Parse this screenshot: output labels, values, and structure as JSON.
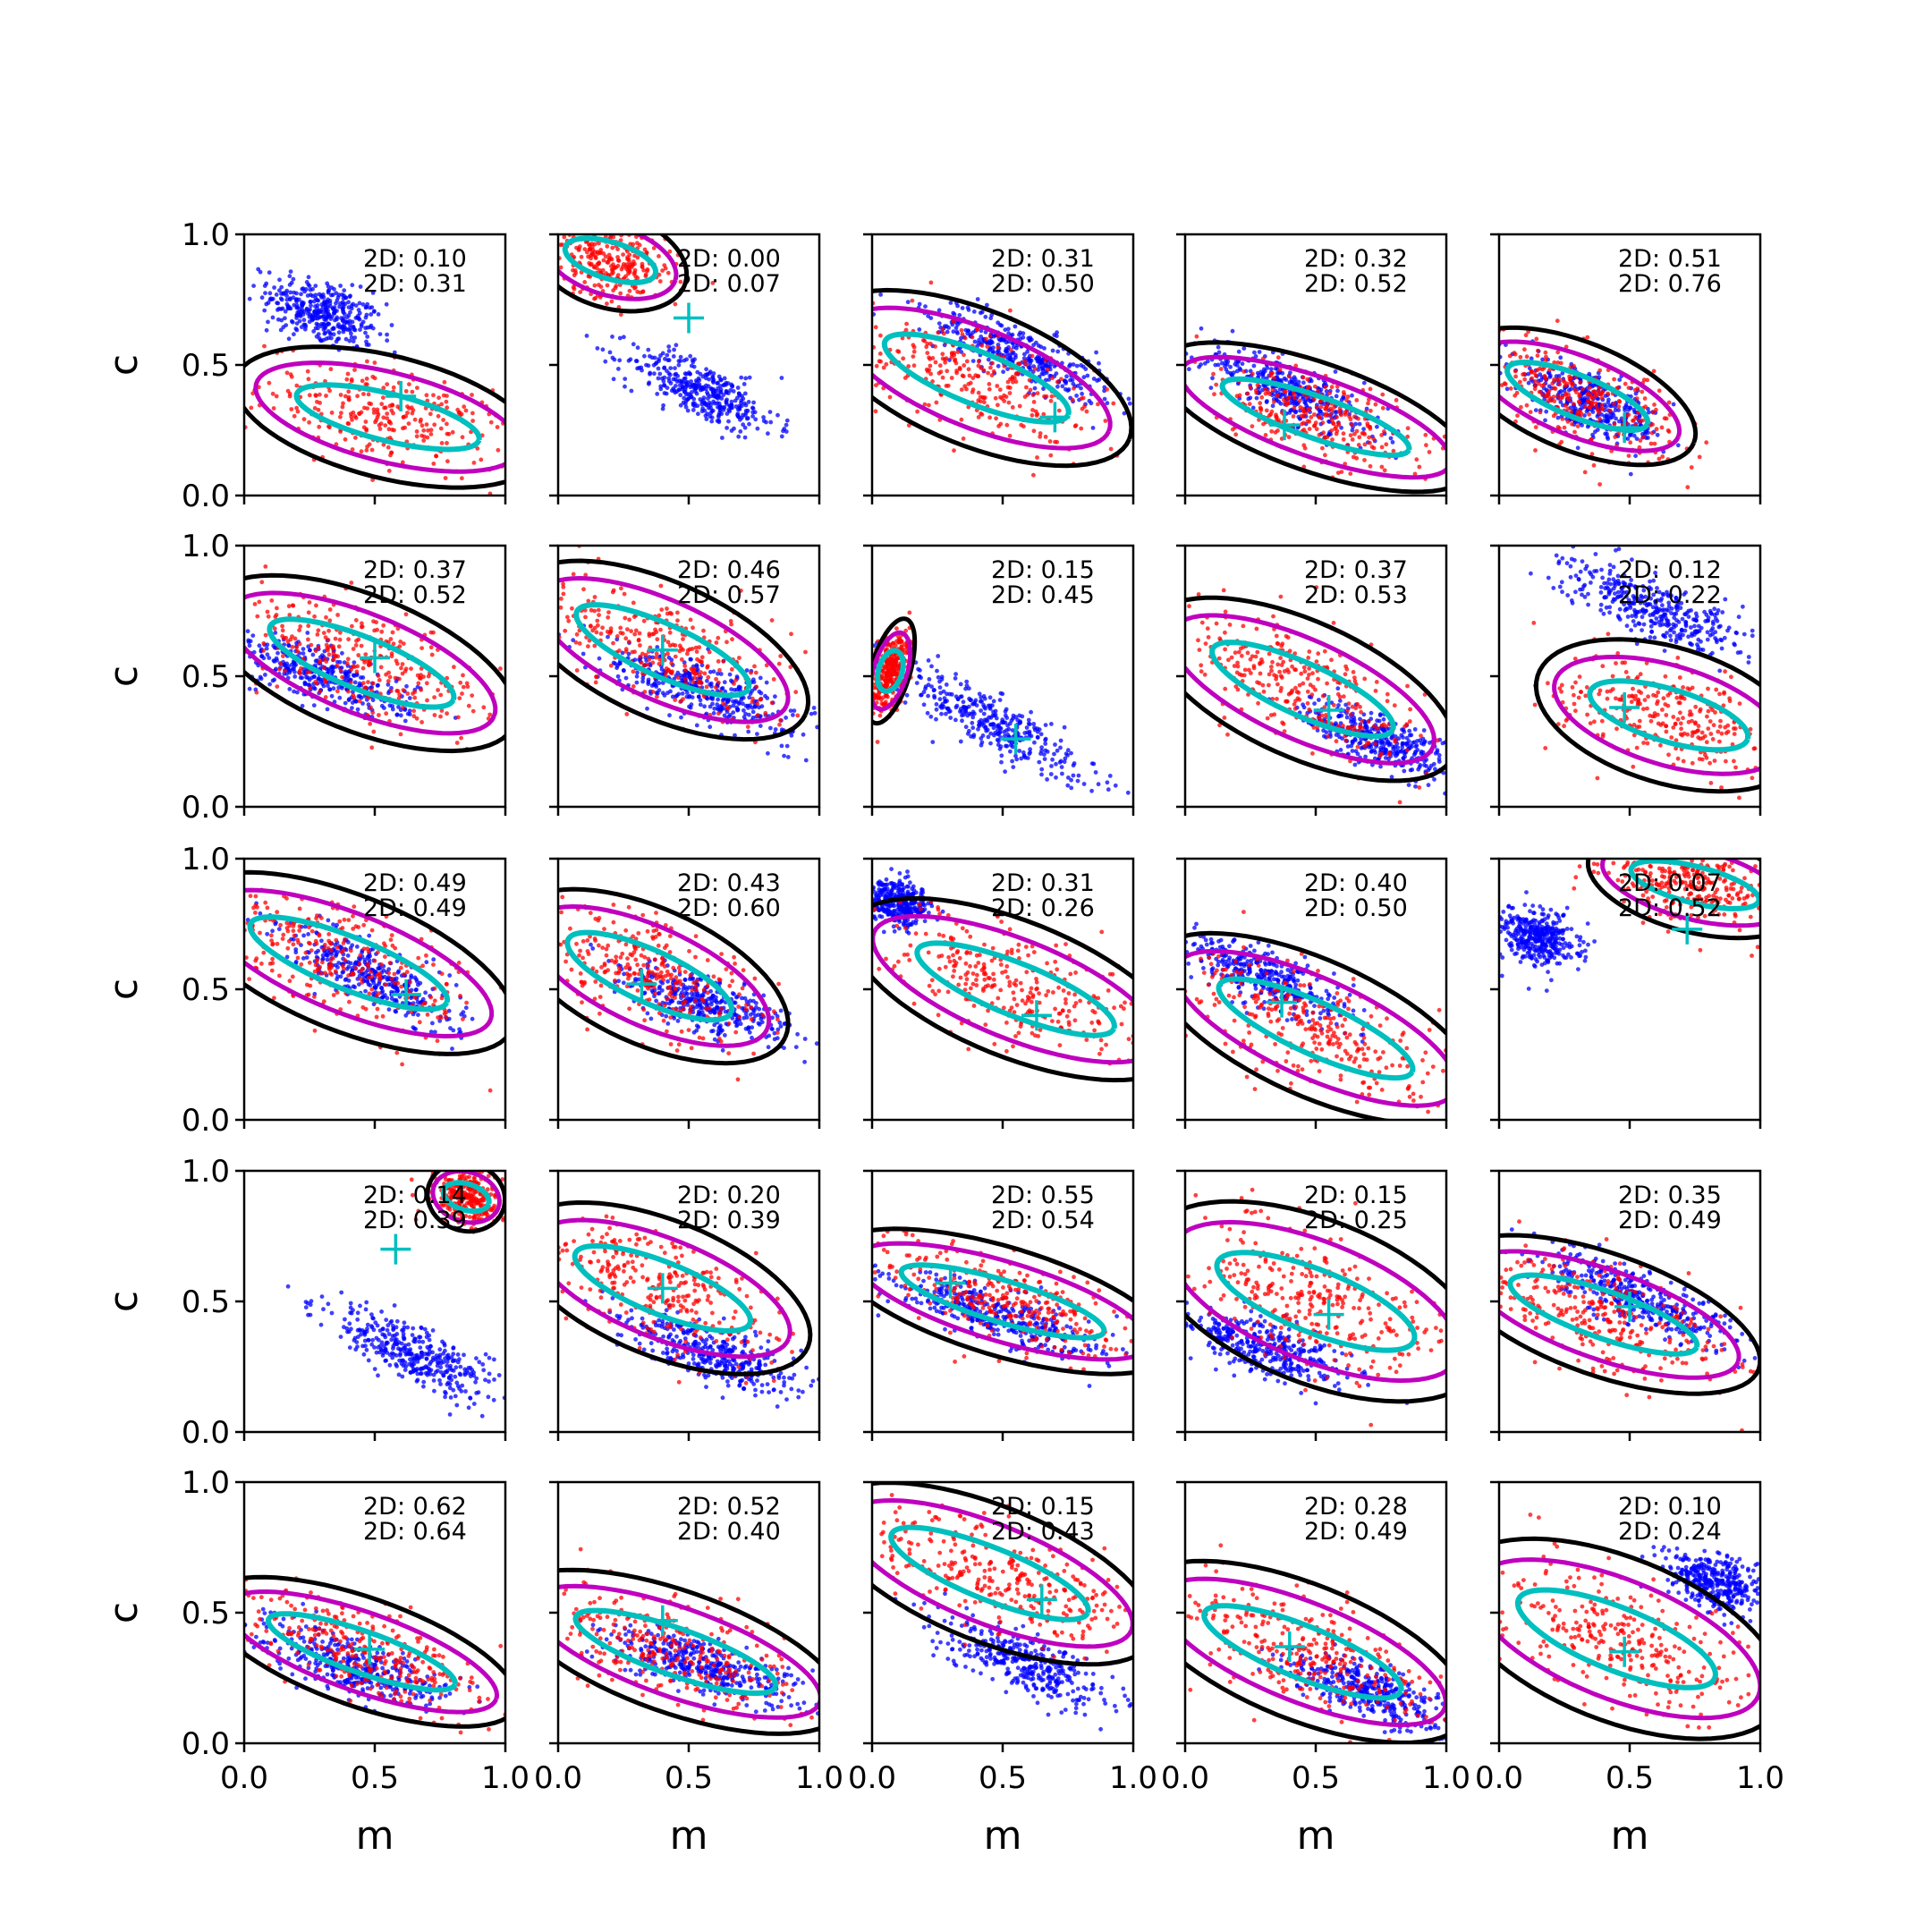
{
  "chart_data": {
    "type": "scatter",
    "grid": false,
    "rows": 5,
    "cols": 5,
    "xlabel": "m",
    "ylabel": "c",
    "xlim": [
      0,
      1
    ],
    "ylim": [
      0,
      1
    ],
    "xticks": [
      "0.0",
      "0.5",
      "1.0"
    ],
    "yticks": [
      "0.0",
      "0.5",
      "1.0"
    ],
    "series": [
      {
        "color": "#0000ff",
        "style": "points"
      },
      {
        "color": "#ff0000",
        "style": "points"
      },
      {
        "color": "#000000",
        "style": "contour"
      },
      {
        "color": "#bf00bf",
        "style": "contour"
      },
      {
        "color": "#00bfbf",
        "style": "contour"
      },
      {
        "color": "#00bfbf",
        "style": "cross marker"
      }
    ],
    "panels": [
      {
        "a1": "2D: 0.10",
        "a2": "2D: 0.31",
        "blue": {
          "m": 0.3,
          "c": 0.7,
          "s": -0.38,
          "w": 0.18,
          "t": 0.06
        },
        "red": {
          "m": 0.55,
          "c": 0.3,
          "s": -0.25,
          "w": 0.4,
          "t": 0.09
        },
        "mark": {
          "m": 0.6,
          "c": 0.38
        }
      },
      {
        "a1": "2D: 0.00",
        "a2": "2D: 0.07",
        "blue": {
          "m": 0.55,
          "c": 0.4,
          "s": -0.45,
          "w": 0.25,
          "t": 0.05
        },
        "red": {
          "m": 0.2,
          "c": 0.9,
          "s": -0.3,
          "w": 0.2,
          "t": 0.07
        },
        "mark": {
          "m": 0.5,
          "c": 0.68
        }
      },
      {
        "a1": "2D: 0.31",
        "a2": "2D: 0.50",
        "blue": {
          "m": 0.55,
          "c": 0.55,
          "s": -0.45,
          "w": 0.3,
          "t": 0.05
        },
        "red": {
          "m": 0.4,
          "c": 0.45,
          "s": -0.4,
          "w": 0.42,
          "t": 0.1
        },
        "mark": {
          "m": 0.7,
          "c": 0.3
        }
      },
      {
        "a1": "2D: 0.32",
        "a2": "2D: 0.52",
        "blue": {
          "m": 0.4,
          "c": 0.4,
          "s": -0.45,
          "w": 0.3,
          "t": 0.05
        },
        "red": {
          "m": 0.5,
          "c": 0.3,
          "s": -0.35,
          "w": 0.42,
          "t": 0.08
        },
        "mark": {
          "m": 0.38,
          "c": 0.27
        }
      },
      {
        "a1": "2D: 0.51",
        "a2": "2D: 0.76",
        "blue": {
          "m": 0.35,
          "c": 0.35,
          "s": -0.5,
          "w": 0.25,
          "t": 0.05
        },
        "red": {
          "m": 0.3,
          "c": 0.38,
          "s": -0.4,
          "w": 0.32,
          "t": 0.08
        },
        "mark": {
          "m": 0.48,
          "c": 0.26
        }
      },
      {
        "a1": "2D: 0.37",
        "a2": "2D: 0.52",
        "blue": {
          "m": 0.3,
          "c": 0.5,
          "s": -0.35,
          "w": 0.28,
          "t": 0.05
        },
        "red": {
          "m": 0.45,
          "c": 0.55,
          "s": -0.4,
          "w": 0.42,
          "t": 0.1
        },
        "mark": {
          "m": 0.5,
          "c": 0.57
        }
      },
      {
        "a1": "2D: 0.46",
        "a2": "2D: 0.57",
        "blue": {
          "m": 0.55,
          "c": 0.45,
          "s": -0.35,
          "w": 0.32,
          "t": 0.05
        },
        "red": {
          "m": 0.4,
          "c": 0.6,
          "s": -0.45,
          "w": 0.4,
          "t": 0.1
        },
        "mark": {
          "m": 0.4,
          "c": 0.6
        }
      },
      {
        "a1": "2D: 0.15",
        "a2": "2D: 0.45",
        "blue": {
          "m": 0.45,
          "c": 0.33,
          "s": -0.55,
          "w": 0.35,
          "t": 0.05
        },
        "red": {
          "m": 0.07,
          "c": 0.52,
          "s": -0.3,
          "w": 0.05,
          "t": 0.08
        },
        "mark": {
          "m": 0.55,
          "c": 0.26
        }
      },
      {
        "a1": "2D: 0.37",
        "a2": "2D: 0.53",
        "blue": {
          "m": 0.75,
          "c": 0.25,
          "s": -0.4,
          "w": 0.25,
          "t": 0.05
        },
        "red": {
          "m": 0.45,
          "c": 0.45,
          "s": -0.45,
          "w": 0.42,
          "t": 0.1
        },
        "mark": {
          "m": 0.55,
          "c": 0.37
        }
      },
      {
        "a1": "2D: 0.12",
        "a2": "2D: 0.22",
        "blue": {
          "m": 0.6,
          "c": 0.75,
          "s": -0.4,
          "w": 0.3,
          "t": 0.05
        },
        "red": {
          "m": 0.65,
          "c": 0.35,
          "s": -0.3,
          "w": 0.35,
          "t": 0.1
        },
        "mark": {
          "m": 0.48,
          "c": 0.38
        }
      },
      {
        "a1": "2D: 0.49",
        "a2": "2D: 0.49",
        "blue": {
          "m": 0.5,
          "c": 0.55,
          "s": -0.5,
          "w": 0.3,
          "t": 0.05
        },
        "red": {
          "m": 0.4,
          "c": 0.6,
          "s": -0.4,
          "w": 0.45,
          "t": 0.1
        },
        "mark": {
          "m": 0.62,
          "c": 0.48
        }
      },
      {
        "a1": "2D: 0.43",
        "a2": "2D: 0.60",
        "blue": {
          "m": 0.55,
          "c": 0.45,
          "s": -0.35,
          "w": 0.28,
          "t": 0.05
        },
        "red": {
          "m": 0.35,
          "c": 0.55,
          "s": -0.45,
          "w": 0.38,
          "t": 0.1
        },
        "mark": {
          "m": 0.32,
          "c": 0.52
        }
      },
      {
        "a1": "2D: 0.31",
        "a2": "2D: 0.26",
        "blue": {
          "m": 0.1,
          "c": 0.83,
          "s": -0.3,
          "w": 0.1,
          "t": 0.04
        },
        "red": {
          "m": 0.55,
          "c": 0.5,
          "s": -0.4,
          "w": 0.45,
          "t": 0.1
        },
        "mark": {
          "m": 0.63,
          "c": 0.4
        }
      },
      {
        "a1": "2D: 0.40",
        "a2": "2D: 0.50",
        "blue": {
          "m": 0.3,
          "c": 0.55,
          "s": -0.45,
          "w": 0.28,
          "t": 0.05
        },
        "red": {
          "m": 0.5,
          "c": 0.35,
          "s": -0.45,
          "w": 0.45,
          "t": 0.1
        },
        "mark": {
          "m": 0.37,
          "c": 0.45
        }
      },
      {
        "a1": "2D: 0.07",
        "a2": "2D: 0.52",
        "blue": {
          "m": 0.15,
          "c": 0.7,
          "s": -0.35,
          "w": 0.12,
          "t": 0.05
        },
        "red": {
          "m": 0.75,
          "c": 0.9,
          "s": -0.25,
          "w": 0.28,
          "t": 0.07
        },
        "mark": {
          "m": 0.72,
          "c": 0.73
        }
      },
      {
        "a1": "2D: 0.14",
        "a2": "2D: 0.39",
        "blue": {
          "m": 0.65,
          "c": 0.3,
          "s": -0.45,
          "w": 0.3,
          "t": 0.05
        },
        "red": {
          "m": 0.85,
          "c": 0.9,
          "s": -0.3,
          "w": 0.1,
          "t": 0.05
        },
        "mark": {
          "m": 0.58,
          "c": 0.7
        }
      },
      {
        "a1": "2D: 0.20",
        "a2": "2D: 0.39",
        "blue": {
          "m": 0.6,
          "c": 0.3,
          "s": -0.4,
          "w": 0.3,
          "t": 0.05
        },
        "red": {
          "m": 0.4,
          "c": 0.55,
          "s": -0.4,
          "w": 0.4,
          "t": 0.1
        },
        "mark": {
          "m": 0.4,
          "c": 0.55
        }
      },
      {
        "a1": "2D: 0.55",
        "a2": "2D: 0.54",
        "blue": {
          "m": 0.45,
          "c": 0.45,
          "s": -0.35,
          "w": 0.35,
          "t": 0.05
        },
        "red": {
          "m": 0.5,
          "c": 0.5,
          "s": -0.3,
          "w": 0.45,
          "t": 0.08
        },
        "mark": {
          "m": 0.3,
          "c": 0.57
        }
      },
      {
        "a1": "2D: 0.15",
        "a2": "2D: 0.25",
        "blue": {
          "m": 0.3,
          "c": 0.32,
          "s": -0.35,
          "w": 0.28,
          "t": 0.05
        },
        "red": {
          "m": 0.5,
          "c": 0.5,
          "s": -0.4,
          "w": 0.45,
          "t": 0.12
        },
        "mark": {
          "m": 0.55,
          "c": 0.45
        }
      },
      {
        "a1": "2D: 0.35",
        "a2": "2D: 0.49",
        "blue": {
          "m": 0.55,
          "c": 0.5,
          "s": -0.4,
          "w": 0.32,
          "t": 0.05
        },
        "red": {
          "m": 0.4,
          "c": 0.45,
          "s": -0.35,
          "w": 0.42,
          "t": 0.09
        },
        "mark": {
          "m": 0.5,
          "c": 0.48
        }
      },
      {
        "a1": "2D: 0.62",
        "a2": "2D: 0.64",
        "blue": {
          "m": 0.4,
          "c": 0.3,
          "s": -0.35,
          "w": 0.3,
          "t": 0.05
        },
        "red": {
          "m": 0.45,
          "c": 0.35,
          "s": -0.35,
          "w": 0.42,
          "t": 0.08
        },
        "mark": {
          "m": 0.48,
          "c": 0.36
        }
      },
      {
        "a1": "2D: 0.52",
        "a2": "2D: 0.40",
        "blue": {
          "m": 0.55,
          "c": 0.3,
          "s": -0.3,
          "w": 0.32,
          "t": 0.05
        },
        "red": {
          "m": 0.45,
          "c": 0.35,
          "s": -0.35,
          "w": 0.45,
          "t": 0.09
        },
        "mark": {
          "m": 0.4,
          "c": 0.47
        }
      },
      {
        "a1": "2D: 0.15",
        "a2": "2D: 0.43",
        "blue": {
          "m": 0.6,
          "c": 0.3,
          "s": -0.4,
          "w": 0.3,
          "t": 0.05
        },
        "red": {
          "m": 0.45,
          "c": 0.65,
          "s": -0.4,
          "w": 0.45,
          "t": 0.1
        },
        "mark": {
          "m": 0.65,
          "c": 0.55
        }
      },
      {
        "a1": "2D: 0.28",
        "a2": "2D: 0.49",
        "blue": {
          "m": 0.7,
          "c": 0.2,
          "s": -0.35,
          "w": 0.25,
          "t": 0.05
        },
        "red": {
          "m": 0.45,
          "c": 0.35,
          "s": -0.4,
          "w": 0.45,
          "t": 0.1
        },
        "mark": {
          "m": 0.4,
          "c": 0.37
        }
      },
      {
        "a1": "2D: 0.10",
        "a2": "2D: 0.24",
        "blue": {
          "m": 0.82,
          "c": 0.62,
          "s": -0.35,
          "w": 0.15,
          "t": 0.05
        },
        "red": {
          "m": 0.45,
          "c": 0.4,
          "s": -0.4,
          "w": 0.45,
          "t": 0.12
        },
        "mark": {
          "m": 0.48,
          "c": 0.35
        }
      }
    ]
  }
}
